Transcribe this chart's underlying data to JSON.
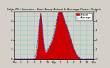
{
  "title": "Solar PV / Inverter - East Array Actual & Average Power Output",
  "title_fontsize": 3.2,
  "bg_color": "#d4d0c8",
  "plot_bg_color": "#d4d0c8",
  "bar_color": "#cc0000",
  "avg_line_color": "#0055ff",
  "legend_actual_color": "#cc0000",
  "legend_avg_color": "#0055ff",
  "legend_fontsize": 2.8,
  "tick_fontsize": 2.8,
  "ylim": [
    0,
    5000
  ],
  "ytick_vals": [
    0,
    1000,
    2000,
    3000,
    4000,
    5000
  ],
  "ytick_labels": [
    "0",
    "1",
    "2",
    "3",
    "4",
    "5"
  ],
  "grid_color": "#00cccc",
  "grid_alpha": 0.9,
  "n_points": 288,
  "time_labels": [
    "12a",
    "2",
    "4",
    "6",
    "8",
    "10",
    "12p",
    "2",
    "4",
    "6",
    "8",
    "10",
    "12a"
  ],
  "vgrid_count": 13,
  "hgrid_vals": [
    0,
    500,
    1000,
    1500,
    2000,
    2500,
    3000,
    3500,
    4000,
    4500,
    5000
  ]
}
